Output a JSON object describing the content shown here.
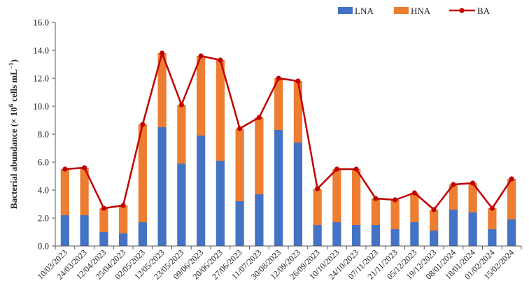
{
  "chart_data": {
    "type": "bar",
    "stacked": true,
    "categories": [
      "10/03/2023",
      "24/03/2023",
      "12/04/2023",
      "25/04/2023",
      "02/05/2023",
      "12/05/2023",
      "23/05/2023",
      "09/06/2023",
      "20/06/2023",
      "27/06/2023",
      "11/07/2023",
      "30/08/2023",
      "12/09/2023",
      "26/09/2023",
      "10/10/2023",
      "24/10/2023",
      "07/11/2023",
      "21/11/2023",
      "05/12/2023",
      "19/12/2023",
      "08/01/2024",
      "18/01/2024",
      "01/02/2024",
      "15/02/2024"
    ],
    "series": [
      {
        "name": "LNA",
        "type": "bar",
        "color": "#4472C4",
        "values": [
          2.2,
          2.2,
          1.0,
          0.9,
          1.7,
          8.5,
          5.9,
          7.9,
          6.1,
          3.2,
          3.7,
          8.3,
          7.4,
          1.5,
          1.7,
          1.5,
          1.5,
          1.2,
          1.7,
          1.1,
          2.6,
          2.4,
          1.2,
          1.9
        ]
      },
      {
        "name": "HNA",
        "type": "bar",
        "color": "#ED7D31",
        "values": [
          3.3,
          3.4,
          1.7,
          2.0,
          7.0,
          5.3,
          4.2,
          5.7,
          7.2,
          5.2,
          5.5,
          3.7,
          4.4,
          2.6,
          3.8,
          4.0,
          1.9,
          2.1,
          2.1,
          1.5,
          1.8,
          2.1,
          1.5,
          2.9
        ]
      },
      {
        "name": "BA",
        "type": "line",
        "color": "#C00000",
        "values": [
          5.5,
          5.6,
          2.7,
          2.9,
          8.7,
          13.8,
          10.1,
          13.6,
          13.3,
          8.4,
          9.2,
          12.0,
          11.8,
          4.1,
          5.5,
          5.5,
          3.4,
          3.3,
          3.8,
          2.6,
          4.4,
          4.5,
          2.7,
          4.8
        ]
      }
    ],
    "ylabel_prefix": "Bacterial abundance (× 10",
    "ylabel_exp1": "6",
    "ylabel_mid": " cells mL",
    "ylabel_exp2": "−1",
    "ylabel_suffix": ")",
    "ylim": [
      0,
      16
    ],
    "yticks": [
      "0.0",
      "2.0",
      "4.0",
      "6.0",
      "8.0",
      "10.0",
      "12.0",
      "14.0",
      "16.0"
    ],
    "grid": false,
    "legend_position": "top-right"
  }
}
